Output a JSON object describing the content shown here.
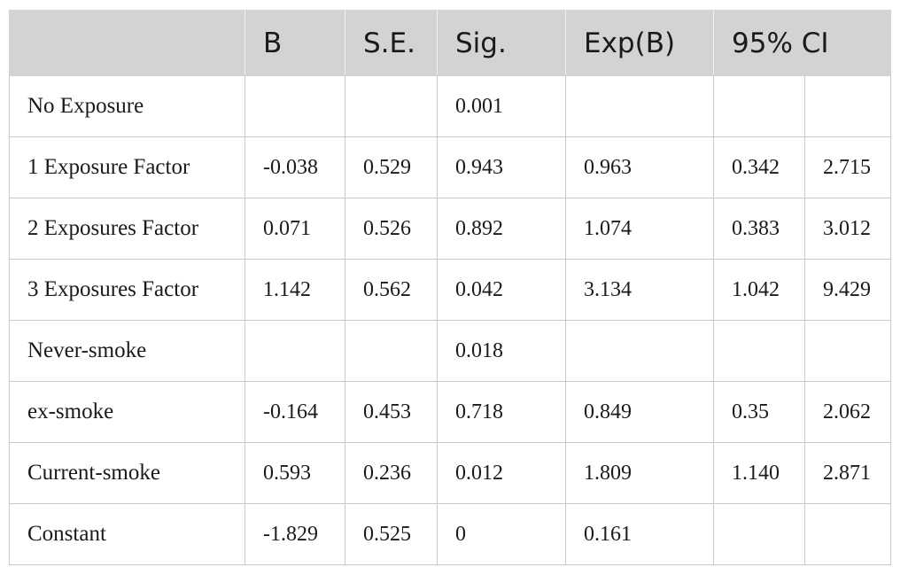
{
  "table": {
    "headers": [
      "",
      "B",
      "S.E.",
      "Sig.",
      "Exp(B)",
      "95% CI"
    ],
    "rows": [
      {
        "label": "No Exposure",
        "b": "",
        "se": "",
        "sig": "0.001",
        "expb": "",
        "ci_low": "",
        "ci_high": ""
      },
      {
        "label": "1 Exposure Factor",
        "b": "-0.038",
        "se": "0.529",
        "sig": "0.943",
        "expb": "0.963",
        "ci_low": "0.342",
        "ci_high": "2.715"
      },
      {
        "label": "2 Exposures Factor",
        "b": "0.071",
        "se": "0.526",
        "sig": "0.892",
        "expb": "1.074",
        "ci_low": "0.383",
        "ci_high": "3.012"
      },
      {
        "label": "3 Exposures Factor",
        "b": "1.142",
        "se": "0.562",
        "sig": "0.042",
        "expb": "3.134",
        "ci_low": "1.042",
        "ci_high": "9.429"
      },
      {
        "label": "Never-smoke",
        "b": "",
        "se": "",
        "sig": "0.018",
        "expb": "",
        "ci_low": "",
        "ci_high": ""
      },
      {
        "label": "ex-smoke",
        "b": "-0.164",
        "se": "0.453",
        "sig": "0.718",
        "expb": "0.849",
        "ci_low": "0.35",
        "ci_high": "2.062"
      },
      {
        "label": "Current-smoke",
        "b": "0.593",
        "se": "0.236",
        "sig": "0.012",
        "expb": "1.809",
        "ci_low": "1.140",
        "ci_high": "2.871"
      },
      {
        "label": "Constant",
        "b": "-1.829",
        "se": "0.525",
        "sig": "0",
        "expb": "0.161",
        "ci_low": "",
        "ci_high": ""
      }
    ]
  }
}
